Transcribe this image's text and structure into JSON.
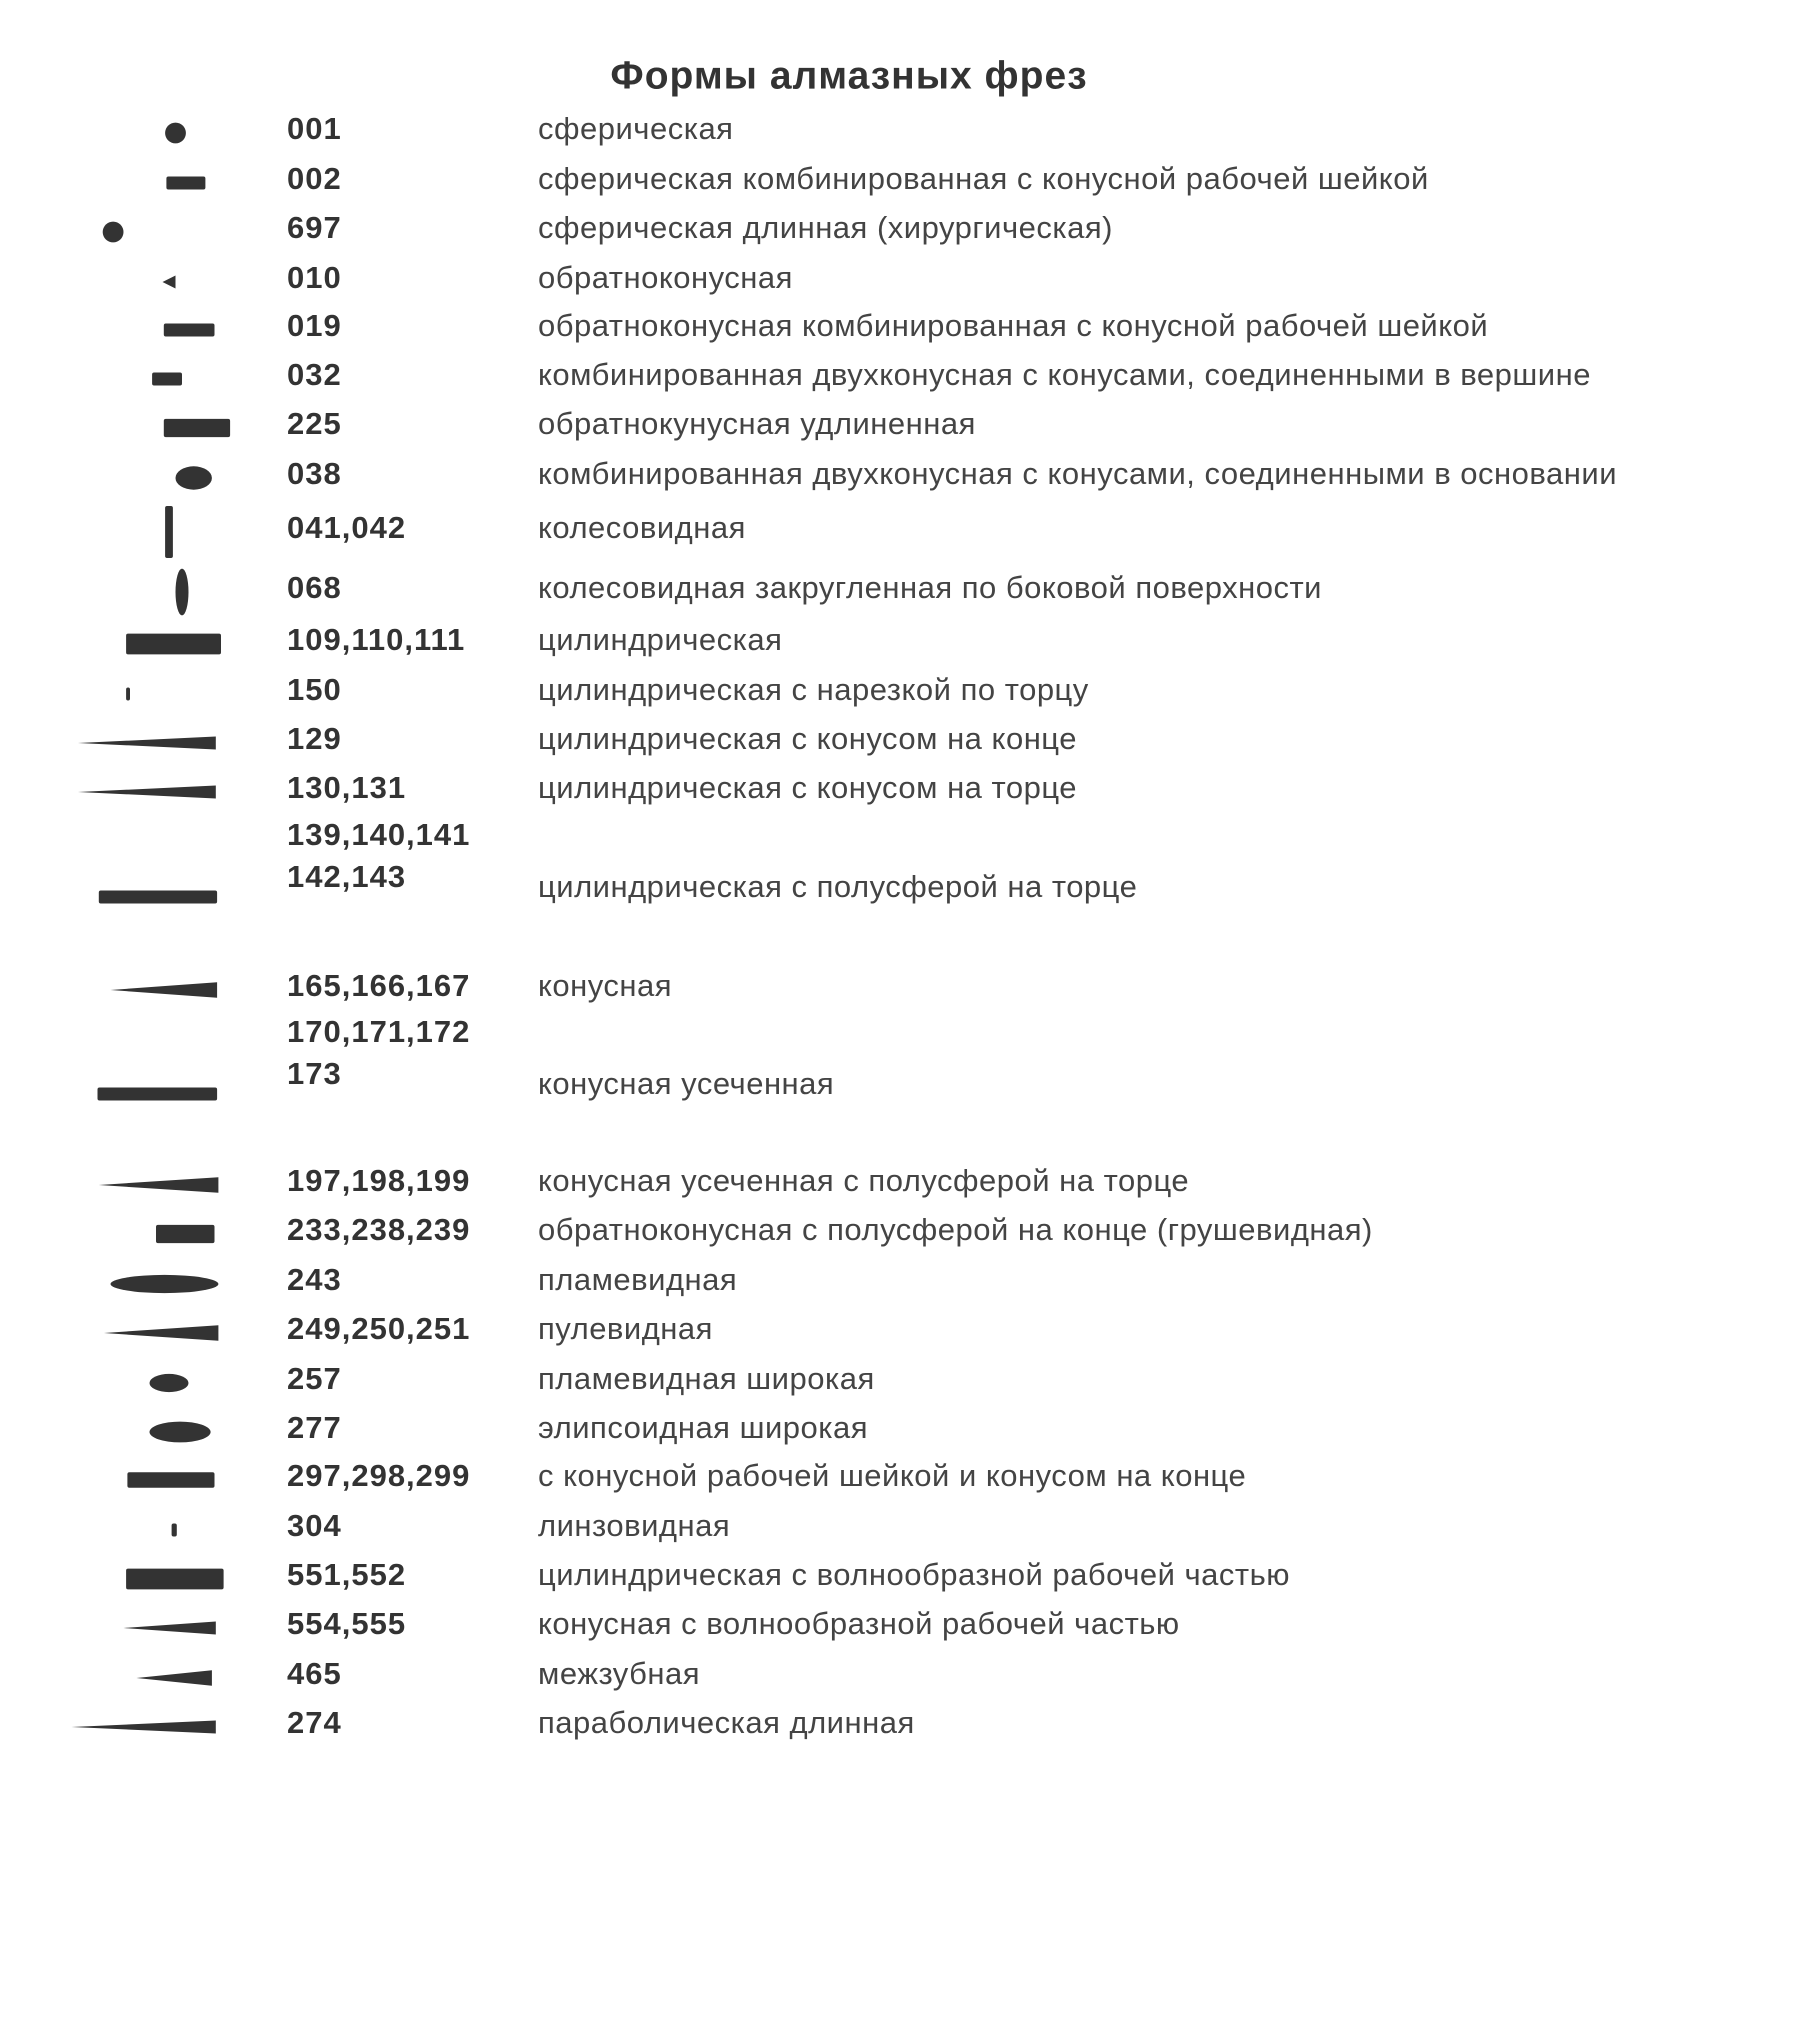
{
  "title": "Формы алмазных фрез",
  "rows": [
    {
      "code": [
        "001"
      ],
      "description": "сферическая"
    },
    {
      "code": [
        "002"
      ],
      "description": "сферическая комбинированная с конусной рабочей шейкой"
    },
    {
      "code": [
        "697"
      ],
      "description": "сферическая длинная (хирургическая)"
    },
    {
      "code": [
        "010"
      ],
      "description": "обратноконусная"
    },
    {
      "code": [
        "019"
      ],
      "description": "обратноконусная комбинированная с конусной рабочей шейкой"
    },
    {
      "code": [
        "032"
      ],
      "description": "комбинированная двухконусная с конусами, соединенными в вершине"
    },
    {
      "code": [
        "225"
      ],
      "description": "обратнокунусная удлиненная"
    },
    {
      "code": [
        "038"
      ],
      "description": "комбинированная двухконусная с конусами, соединенными в основании"
    },
    {
      "code": [
        "041,042"
      ],
      "description": "колесовидная"
    },
    {
      "code": [
        "068"
      ],
      "description": "колесовидная закругленная по боковой поверхности"
    },
    {
      "code": [
        "109,110,111"
      ],
      "description": "цилиндрическая"
    },
    {
      "code": [
        "150"
      ],
      "description": "цилиндрическая с нарезкой по торцу"
    },
    {
      "code": [
        "129"
      ],
      "description": "цилиндрическая с конусом на конце"
    },
    {
      "code": [
        "130,131"
      ],
      "description": "цилиндрическая с конусом на торце"
    },
    {
      "code": [
        "139,140,141",
        "142,143"
      ],
      "description": "цилиндрическая с полусферой на торце"
    },
    {
      "code": [
        "165,166,167"
      ],
      "description": "конусная"
    },
    {
      "code": [
        "170,171,172",
        "173"
      ],
      "description": "конусная усеченная"
    },
    {
      "code": [
        "197,198,199"
      ],
      "description": "конусная усеченная с полусферой на торце"
    },
    {
      "code": [
        "233,238,239"
      ],
      "description": "обратноконусная с полусферой на конце (грушевидная)"
    },
    {
      "code": [
        "243"
      ],
      "description": "пламевидная"
    },
    {
      "code": [
        "249,250,251"
      ],
      "description": "пулевидная"
    },
    {
      "code": [
        "257"
      ],
      "description": "пламевидная широкая"
    },
    {
      "code": [
        "277"
      ],
      "description": "элипсоидная широкая"
    },
    {
      "code": [
        "297,298,299"
      ],
      "description": "с конусной рабочей шейкой и конусом на конце"
    },
    {
      "code": [
        "304"
      ],
      "description": "линзовидная"
    },
    {
      "code": [
        "551,552"
      ],
      "description": "цилиндрическая с волнообразной рабочей частью"
    },
    {
      "code": [
        "554,555"
      ],
      "description": "конусная с волнообразной рабочей частью"
    },
    {
      "code": [
        "465"
      ],
      "description": "межзубная"
    },
    {
      "code": [
        "274"
      ],
      "description": "параболическая длинная"
    }
  ]
}
